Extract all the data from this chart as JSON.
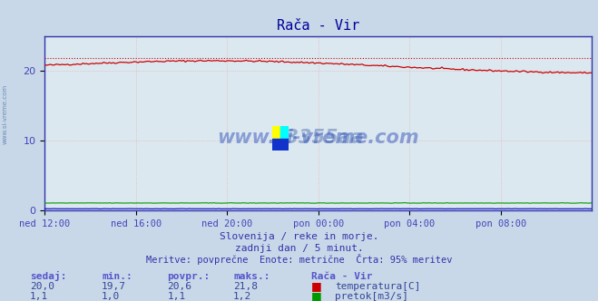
{
  "title": "Rača - Vir",
  "background_color": "#c8d8e8",
  "plot_bg_color": "#dce8f0",
  "grid_color": "#e8a0a0",
  "x_tick_labels": [
    "ned 12:00",
    "ned 16:00",
    "ned 20:00",
    "pon 00:00",
    "pon 04:00",
    "pon 08:00"
  ],
  "x_tick_positions": [
    0,
    48,
    96,
    144,
    192,
    240
  ],
  "n_points": 289,
  "temp_min": 19.7,
  "temp_max": 21.8,
  "temp_avg": 20.6,
  "temp_now": 20.0,
  "flow_min": 1.0,
  "flow_max": 1.2,
  "flow_avg": 1.1,
  "flow_now": 1.1,
  "y_ticks": [
    0,
    10,
    20
  ],
  "y_lim": [
    0,
    25
  ],
  "subtitle1": "Slovenija / reke in morje.",
  "subtitle2": "zadnji dan / 5 minut.",
  "subtitle3": "Meritve: povprečne  Enote: metrične  Črta: 95% meritev",
  "legend_title": "Rača - Vir",
  "label_temp": "temperatura[C]",
  "label_flow": "pretok[m3/s]",
  "color_temp": "#cc0000",
  "color_flow": "#009900",
  "color_height": "#0000bb",
  "title_color": "#000099",
  "axis_label_color": "#4444bb",
  "text_color": "#3333aa",
  "stat_color": "#5555cc",
  "value_color": "#334499",
  "watermark_color": "#3355aa",
  "left_text_color": "#5577aa",
  "spine_color": "#3333aa"
}
